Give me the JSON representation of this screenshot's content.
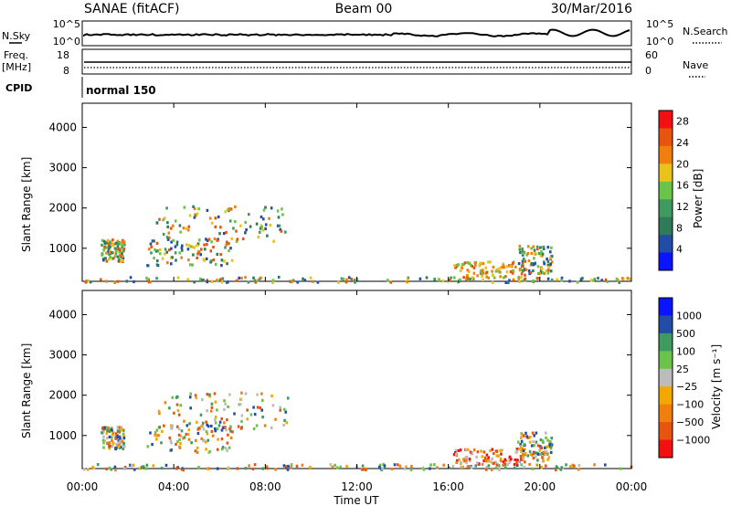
{
  "header": {
    "station": "SANAE (fitACF)",
    "beam": "Beam 00",
    "date": "30/Mar/2016"
  },
  "panel_labels": {
    "nsky": "N.Sky",
    "nsearch": "N.Search",
    "freq_a": "Freq.",
    "freq_b": "[MHz]",
    "nave": "Nave",
    "cpid": "CPID",
    "cpid_value": "normal 150"
  },
  "noise_axis": {
    "left_top": "10^5",
    "left_bottom": "10^0",
    "right_top": "10^5",
    "right_bottom": "10^0"
  },
  "freq_axis": {
    "left_ticks": [
      "18",
      "8"
    ],
    "right_ticks": [
      "60",
      "0"
    ]
  },
  "colors": {
    "power_scale": [
      "#0a14ff",
      "#234ca6",
      "#2f7a5a",
      "#3f9a5f",
      "#6cc34a",
      "#e9c21c",
      "#f07f0f",
      "#e85410",
      "#f21010"
    ],
    "velocity_scale": [
      "#f21010",
      "#e85410",
      "#f07f0f",
      "#f2a800",
      "#bcbcbc",
      "#6cc34a",
      "#3f9a5f",
      "#234ca6",
      "#0a14ff"
    ]
  },
  "chart_data": [
    {
      "type": "heatmap",
      "title": "",
      "xlabel": "",
      "ylabel": "Slant Range [km]",
      "x_ticks": [
        "00:00",
        "04:00",
        "08:00",
        "12:00",
        "16:00",
        "20:00",
        "00:00"
      ],
      "y_ticks": [
        "1000",
        "2000",
        "3000",
        "4000"
      ],
      "xlim": [
        0,
        24
      ],
      "ylim": [
        180,
        4600
      ],
      "colorbar": {
        "label": "Power [dB]",
        "ticks": [
          "4",
          "8",
          "12",
          "16",
          "20",
          "24",
          "28"
        ],
        "range": [
          0,
          30
        ]
      },
      "scatter_regions": [
        {
          "t": [
            0.0,
            24.0
          ],
          "range": [
            180,
            320
          ],
          "level": "mixed"
        },
        {
          "t": [
            0.8,
            1.8
          ],
          "range": [
            700,
            1250
          ],
          "level": "mixed"
        },
        {
          "t": [
            2.8,
            6.6
          ],
          "range": [
            600,
            1300
          ],
          "level": "mixed"
        },
        {
          "t": [
            3.2,
            9.0
          ],
          "range": [
            1200,
            2100
          ],
          "level": "mixed"
        },
        {
          "t": [
            16.2,
            19.3
          ],
          "range": [
            300,
            700
          ],
          "level": "high"
        },
        {
          "t": [
            19.0,
            20.5
          ],
          "range": [
            400,
            1100
          ],
          "level": "mixed"
        }
      ]
    },
    {
      "type": "heatmap",
      "title": "",
      "xlabel": "Time UT",
      "ylabel": "Slant Range [km]",
      "x_ticks": [
        "00:00",
        "04:00",
        "08:00",
        "12:00",
        "16:00",
        "20:00",
        "00:00"
      ],
      "y_ticks": [
        "1000",
        "2000",
        "3000",
        "4000"
      ],
      "xlim": [
        0,
        24
      ],
      "ylim": [
        180,
        4600
      ],
      "colorbar": {
        "label": "Velocity [m s⁻¹]",
        "ticks": [
          "1000",
          "500",
          "100",
          "25",
          "−25",
          "−100",
          "−500",
          "−1000"
        ]
      },
      "scatter_regions": [
        {
          "t": [
            0.0,
            24.0
          ],
          "range": [
            180,
            320
          ],
          "level": "mixed"
        },
        {
          "t": [
            0.8,
            1.8
          ],
          "range": [
            700,
            1250
          ],
          "level": "mixed"
        },
        {
          "t": [
            2.8,
            6.6
          ],
          "range": [
            600,
            1300
          ],
          "level": "mixed"
        },
        {
          "t": [
            3.2,
            9.0
          ],
          "range": [
            1200,
            2100
          ],
          "level": "mixed"
        },
        {
          "t": [
            16.2,
            19.3
          ],
          "range": [
            300,
            700
          ],
          "level": "negative"
        },
        {
          "t": [
            19.0,
            20.5
          ],
          "range": [
            400,
            1100
          ],
          "level": "mixed"
        }
      ]
    }
  ]
}
